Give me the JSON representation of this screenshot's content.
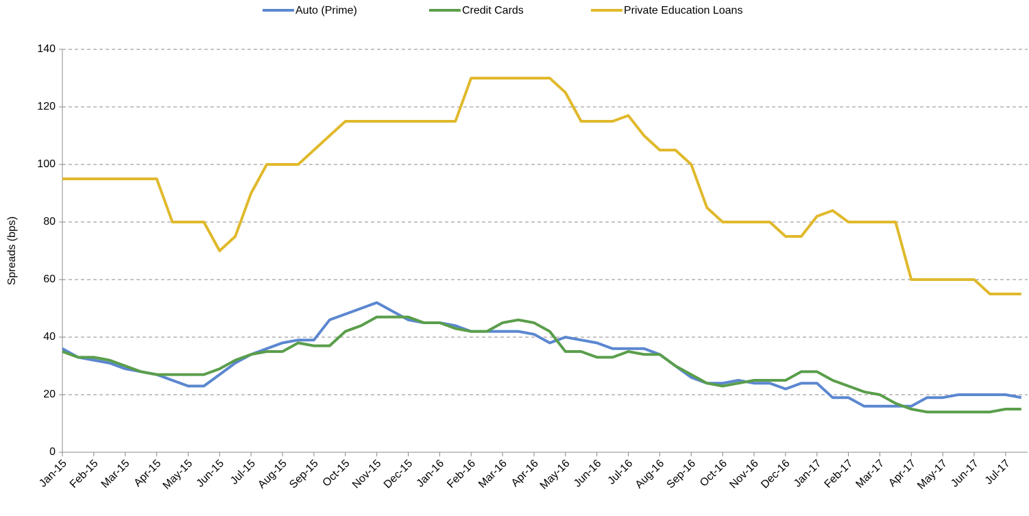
{
  "chart_data": {
    "type": "line",
    "y_label": "Spreads (bps)",
    "categories": [
      "Jan-15",
      null,
      "Feb-15",
      null,
      "Mar-15",
      null,
      "Apr-15",
      null,
      "May-15",
      null,
      "Jun-15",
      null,
      "Jul-15",
      null,
      "Aug-15",
      null,
      "Sep-15",
      null,
      "Oct-15",
      null,
      "Nov-15",
      null,
      "Dec-15",
      null,
      "Jan-16",
      null,
      "Feb-16",
      null,
      "Mar-16",
      null,
      "Apr-16",
      null,
      "May-16",
      null,
      "Jun-16",
      null,
      "Jul-16",
      null,
      "Aug-16",
      null,
      "Sep-16",
      null,
      "Oct-16",
      null,
      "Nov-16",
      null,
      "Dec-16",
      null,
      "Jan-17",
      null,
      "Feb-17",
      null,
      "Mar-17",
      null,
      "Apr-17",
      null,
      "May-17",
      null,
      "Jun-17",
      null,
      "Jul-17",
      null
    ],
    "series": [
      {
        "name": "Auto (Prime)",
        "color": "#5b87cf",
        "values": [
          36,
          33,
          32,
          31,
          29,
          28,
          27,
          25,
          23,
          23,
          27,
          31,
          34,
          36,
          38,
          39,
          39,
          46,
          48,
          50,
          52,
          49,
          46,
          45,
          45,
          44,
          42,
          42,
          42,
          42,
          41,
          38,
          40,
          39,
          38,
          36,
          36,
          36,
          34,
          30,
          26,
          24,
          24,
          25,
          24,
          24,
          22,
          24,
          24,
          19,
          19,
          16,
          16,
          16,
          16,
          19,
          19,
          20,
          20,
          20,
          20,
          19
        ]
      },
      {
        "name": "Credit Cards",
        "color": "#5a9e4b",
        "values": [
          35,
          33,
          33,
          32,
          30,
          28,
          27,
          27,
          27,
          27,
          29,
          32,
          34,
          35,
          35,
          38,
          37,
          37,
          42,
          44,
          47,
          47,
          47,
          45,
          45,
          43,
          42,
          42,
          45,
          46,
          45,
          42,
          35,
          35,
          33,
          33,
          35,
          34,
          34,
          30,
          27,
          24,
          23,
          24,
          25,
          25,
          25,
          28,
          28,
          25,
          23,
          21,
          20,
          17,
          15,
          14,
          14,
          14,
          14,
          14,
          15,
          15
        ]
      },
      {
        "name": "Private Education Loans",
        "color": "#e0b92c",
        "values": [
          95,
          95,
          95,
          95,
          95,
          95,
          95,
          80,
          80,
          80,
          70,
          75,
          90,
          100,
          100,
          100,
          105,
          110,
          115,
          115,
          115,
          115,
          115,
          115,
          115,
          115,
          130,
          130,
          130,
          130,
          130,
          130,
          125,
          115,
          115,
          115,
          117,
          110,
          105,
          105,
          100,
          85,
          80,
          80,
          80,
          80,
          75,
          75,
          82,
          84,
          80,
          80,
          80,
          80,
          60,
          60,
          60,
          60,
          60,
          55,
          55,
          55
        ]
      }
    ],
    "ylim": [
      0,
      140
    ],
    "yticks": [
      0,
      20,
      40,
      60,
      80,
      100,
      120,
      140
    ],
    "grid": true,
    "legend": "top"
  }
}
